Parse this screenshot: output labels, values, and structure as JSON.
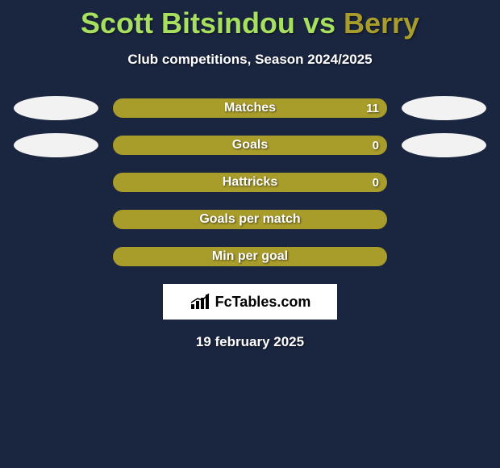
{
  "title_player1": "Scott Bitsindou",
  "title_vs": "vs",
  "title_player2": "Berry",
  "title_color1": "#a7e05f",
  "title_color2": "#a89c2b",
  "subtitle": "Club competitions, Season 2024/2025",
  "stats": [
    {
      "label": "Matches",
      "value_right": "11",
      "bar_color": "#a89c2b",
      "show_ellipses": true,
      "ellipse_left_color": "#f2f2f2",
      "ellipse_right_color": "#f2f2f2"
    },
    {
      "label": "Goals",
      "value_right": "0",
      "bar_color": "#a89c2b",
      "show_ellipses": true,
      "ellipse_left_color": "#f2f2f2",
      "ellipse_right_color": "#f2f2f2"
    },
    {
      "label": "Hattricks",
      "value_right": "0",
      "bar_color": "#a89c2b",
      "show_ellipses": false
    },
    {
      "label": "Goals per match",
      "value_right": "",
      "bar_color": "#a89c2b",
      "show_ellipses": false
    },
    {
      "label": "Min per goal",
      "value_right": "",
      "bar_color": "#a89c2b",
      "show_ellipses": false
    }
  ],
  "logo_text": "FcTables.com",
  "date": "19 february 2025",
  "background_color": "#1a253f",
  "text_color": "#ffffff"
}
